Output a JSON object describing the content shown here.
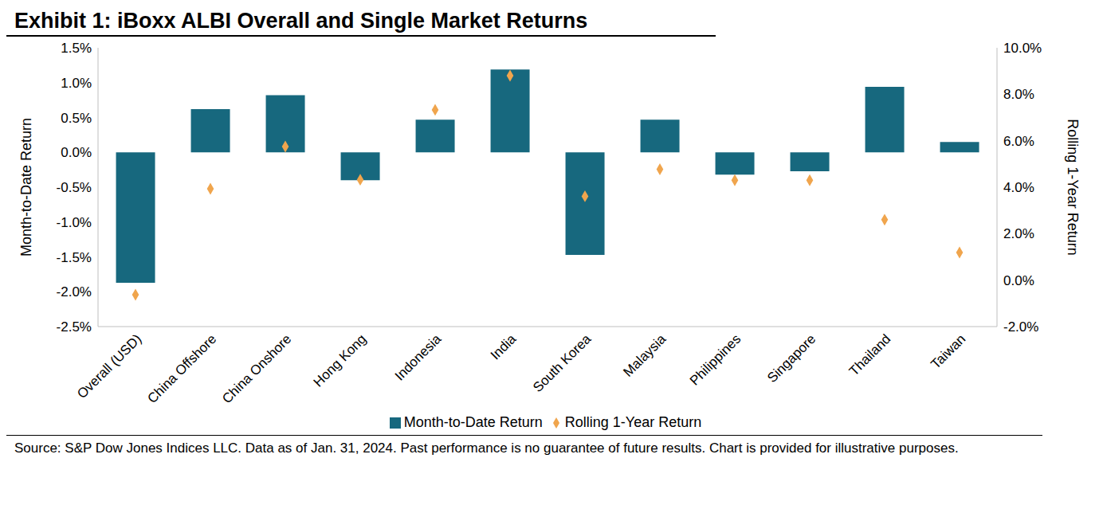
{
  "chart_data": {
    "type": "bar",
    "title": "Exhibit 1: iBoxx ALBI Overall and Single Market Returns",
    "note": "Source: S&P Dow Jones Indices LLC.  Data as of Jan. 31, 2024.  Past performance is no guarantee of future results.  Chart is provided for illustrative purposes.",
    "y_label": "Month-to-Date Return",
    "y2_label": "Rolling 1-Year Return",
    "categories": [
      "Overall (USD)",
      "China Offshore",
      "China Onshore",
      "Hong Kong",
      "Indonesia",
      "India",
      "South Korea",
      "Malaysia",
      "Philippines",
      "Singapore",
      "Thailand",
      "Taiwan"
    ],
    "series": [
      {
        "name": "Month-to-Date Return",
        "type": "bar",
        "color": "#17687e",
        "values": [
          -1.87,
          0.62,
          0.82,
          -0.4,
          0.47,
          1.19,
          -1.47,
          0.47,
          -0.32,
          -0.27,
          0.94,
          0.15
        ]
      },
      {
        "name": "Rolling 1-Year Return",
        "type": "scatter",
        "marker": "diamond",
        "color": "#f0a54d",
        "axis": "y2",
        "values": [
          -0.63,
          3.93,
          5.75,
          4.32,
          7.33,
          8.8,
          3.61,
          4.77,
          4.3,
          4.3,
          2.6,
          1.19
        ]
      }
    ],
    "ylim": [
      -2.5,
      1.5
    ],
    "yticks": [
      {
        "value": -2.5,
        "label": "-2.5%"
      },
      {
        "value": -2,
        "label": "-2.0%"
      },
      {
        "value": -1.5,
        "label": "-1.5%"
      },
      {
        "value": -1,
        "label": "-1.0%"
      },
      {
        "value": -0.5,
        "label": "-0.5%"
      },
      {
        "value": 0,
        "label": "0.0%"
      },
      {
        "value": 0.5,
        "label": "0.5%"
      },
      {
        "value": 1,
        "label": "1.0%"
      },
      {
        "value": 1.5,
        "label": "1.5%"
      }
    ],
    "y2lim": [
      -2,
      10
    ],
    "y2ticks": [
      {
        "value": -2,
        "label": "-2.0%"
      },
      {
        "value": 0,
        "label": "0.0%"
      },
      {
        "value": 2,
        "label": "2.0%"
      },
      {
        "value": 4,
        "label": "4.0%"
      },
      {
        "value": 6,
        "label": "6.0%"
      },
      {
        "value": 8,
        "label": "8.0%"
      },
      {
        "value": 10,
        "label": "10.0%"
      }
    ],
    "grid": false,
    "legend": "bottom"
  }
}
